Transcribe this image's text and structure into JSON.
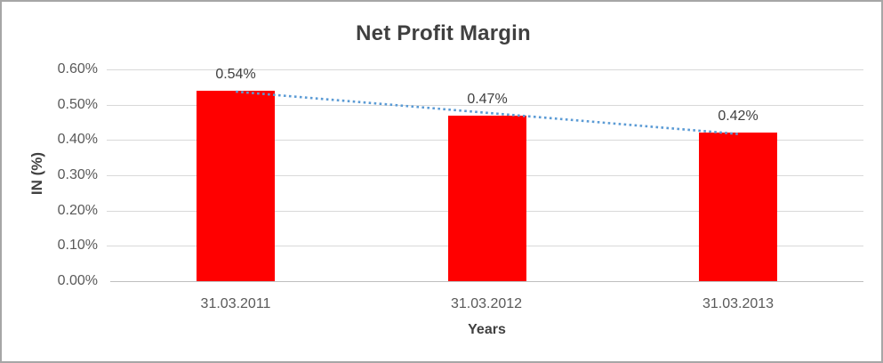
{
  "chart_data": {
    "type": "bar",
    "title": "Net Profit Margin",
    "categories": [
      "31.03.2011",
      "31.03.2012",
      "31.03.2013"
    ],
    "values": [
      0.54,
      0.47,
      0.42
    ],
    "data_labels": [
      "0.54%",
      "0.47%",
      "0.42%"
    ],
    "xlabel": "Years",
    "ylabel": "IN (%)",
    "ylim": [
      0,
      0.6
    ],
    "ytick_step": 0.1,
    "ytick_labels": [
      "0.00%",
      "0.10%",
      "0.20%",
      "0.30%",
      "0.40%",
      "0.50%",
      "0.60%"
    ],
    "grid": true,
    "legend": false,
    "bar_color": "#ff0000",
    "trendline": {
      "type": "linear",
      "style": "dotted",
      "color": "#5b9bd5",
      "start_value": 0.537,
      "end_value": 0.417
    }
  },
  "colors": {
    "title_text": "#404040",
    "axis_text": "#595959",
    "gridline": "#d9d9d9",
    "axis_line": "#bfbfbf",
    "frame_border": "#a6a6a6",
    "background": "#ffffff"
  }
}
